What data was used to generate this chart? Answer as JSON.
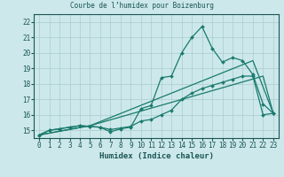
{
  "title": "Courbe de l’humidex pour Boizenburg",
  "xlabel": "Humidex (Indice chaleur)",
  "background_color": "#cce8ea",
  "grid_color": "#aacccc",
  "line_color": "#1a7a6e",
  "xlim": [
    -0.5,
    23.5
  ],
  "ylim": [
    14.5,
    22.5
  ],
  "xticks": [
    0,
    1,
    2,
    3,
    4,
    5,
    6,
    7,
    8,
    9,
    10,
    11,
    12,
    13,
    14,
    15,
    16,
    17,
    18,
    19,
    20,
    21,
    22,
    23
  ],
  "yticks": [
    15,
    16,
    17,
    18,
    19,
    20,
    21,
    22
  ],
  "line1_x": [
    0,
    1,
    2,
    3,
    4,
    5,
    6,
    7,
    8,
    9,
    10,
    11,
    12,
    13,
    14,
    15,
    16,
    17,
    18,
    19,
    20,
    21,
    22,
    23
  ],
  "line1_y": [
    14.7,
    15.0,
    15.1,
    15.2,
    15.3,
    15.25,
    15.2,
    14.9,
    15.1,
    15.2,
    16.4,
    16.6,
    18.4,
    18.5,
    20.0,
    21.0,
    21.7,
    20.3,
    19.4,
    19.7,
    19.5,
    18.6,
    16.7,
    16.1
  ],
  "line2_x": [
    0,
    1,
    2,
    3,
    4,
    5,
    6,
    7,
    8,
    9,
    10,
    11,
    12,
    13,
    14,
    15,
    16,
    17,
    18,
    19,
    20,
    21,
    22,
    23
  ],
  "line2_y": [
    14.7,
    15.0,
    15.1,
    15.2,
    15.3,
    15.25,
    15.2,
    15.05,
    15.15,
    15.25,
    15.6,
    15.7,
    16.0,
    16.3,
    17.0,
    17.4,
    17.7,
    17.9,
    18.1,
    18.3,
    18.5,
    18.5,
    16.0,
    16.1
  ],
  "line3_x": [
    0,
    5,
    22,
    23
  ],
  "line3_y": [
    14.7,
    15.3,
    18.5,
    16.1
  ],
  "line4_x": [
    0,
    5,
    21,
    23
  ],
  "line4_y": [
    14.7,
    15.3,
    19.5,
    16.1
  ],
  "tick_fontsize": 5.5,
  "xlabel_fontsize": 6.5,
  "tick_color": "#1a5555",
  "spine_color": "#1a5555"
}
